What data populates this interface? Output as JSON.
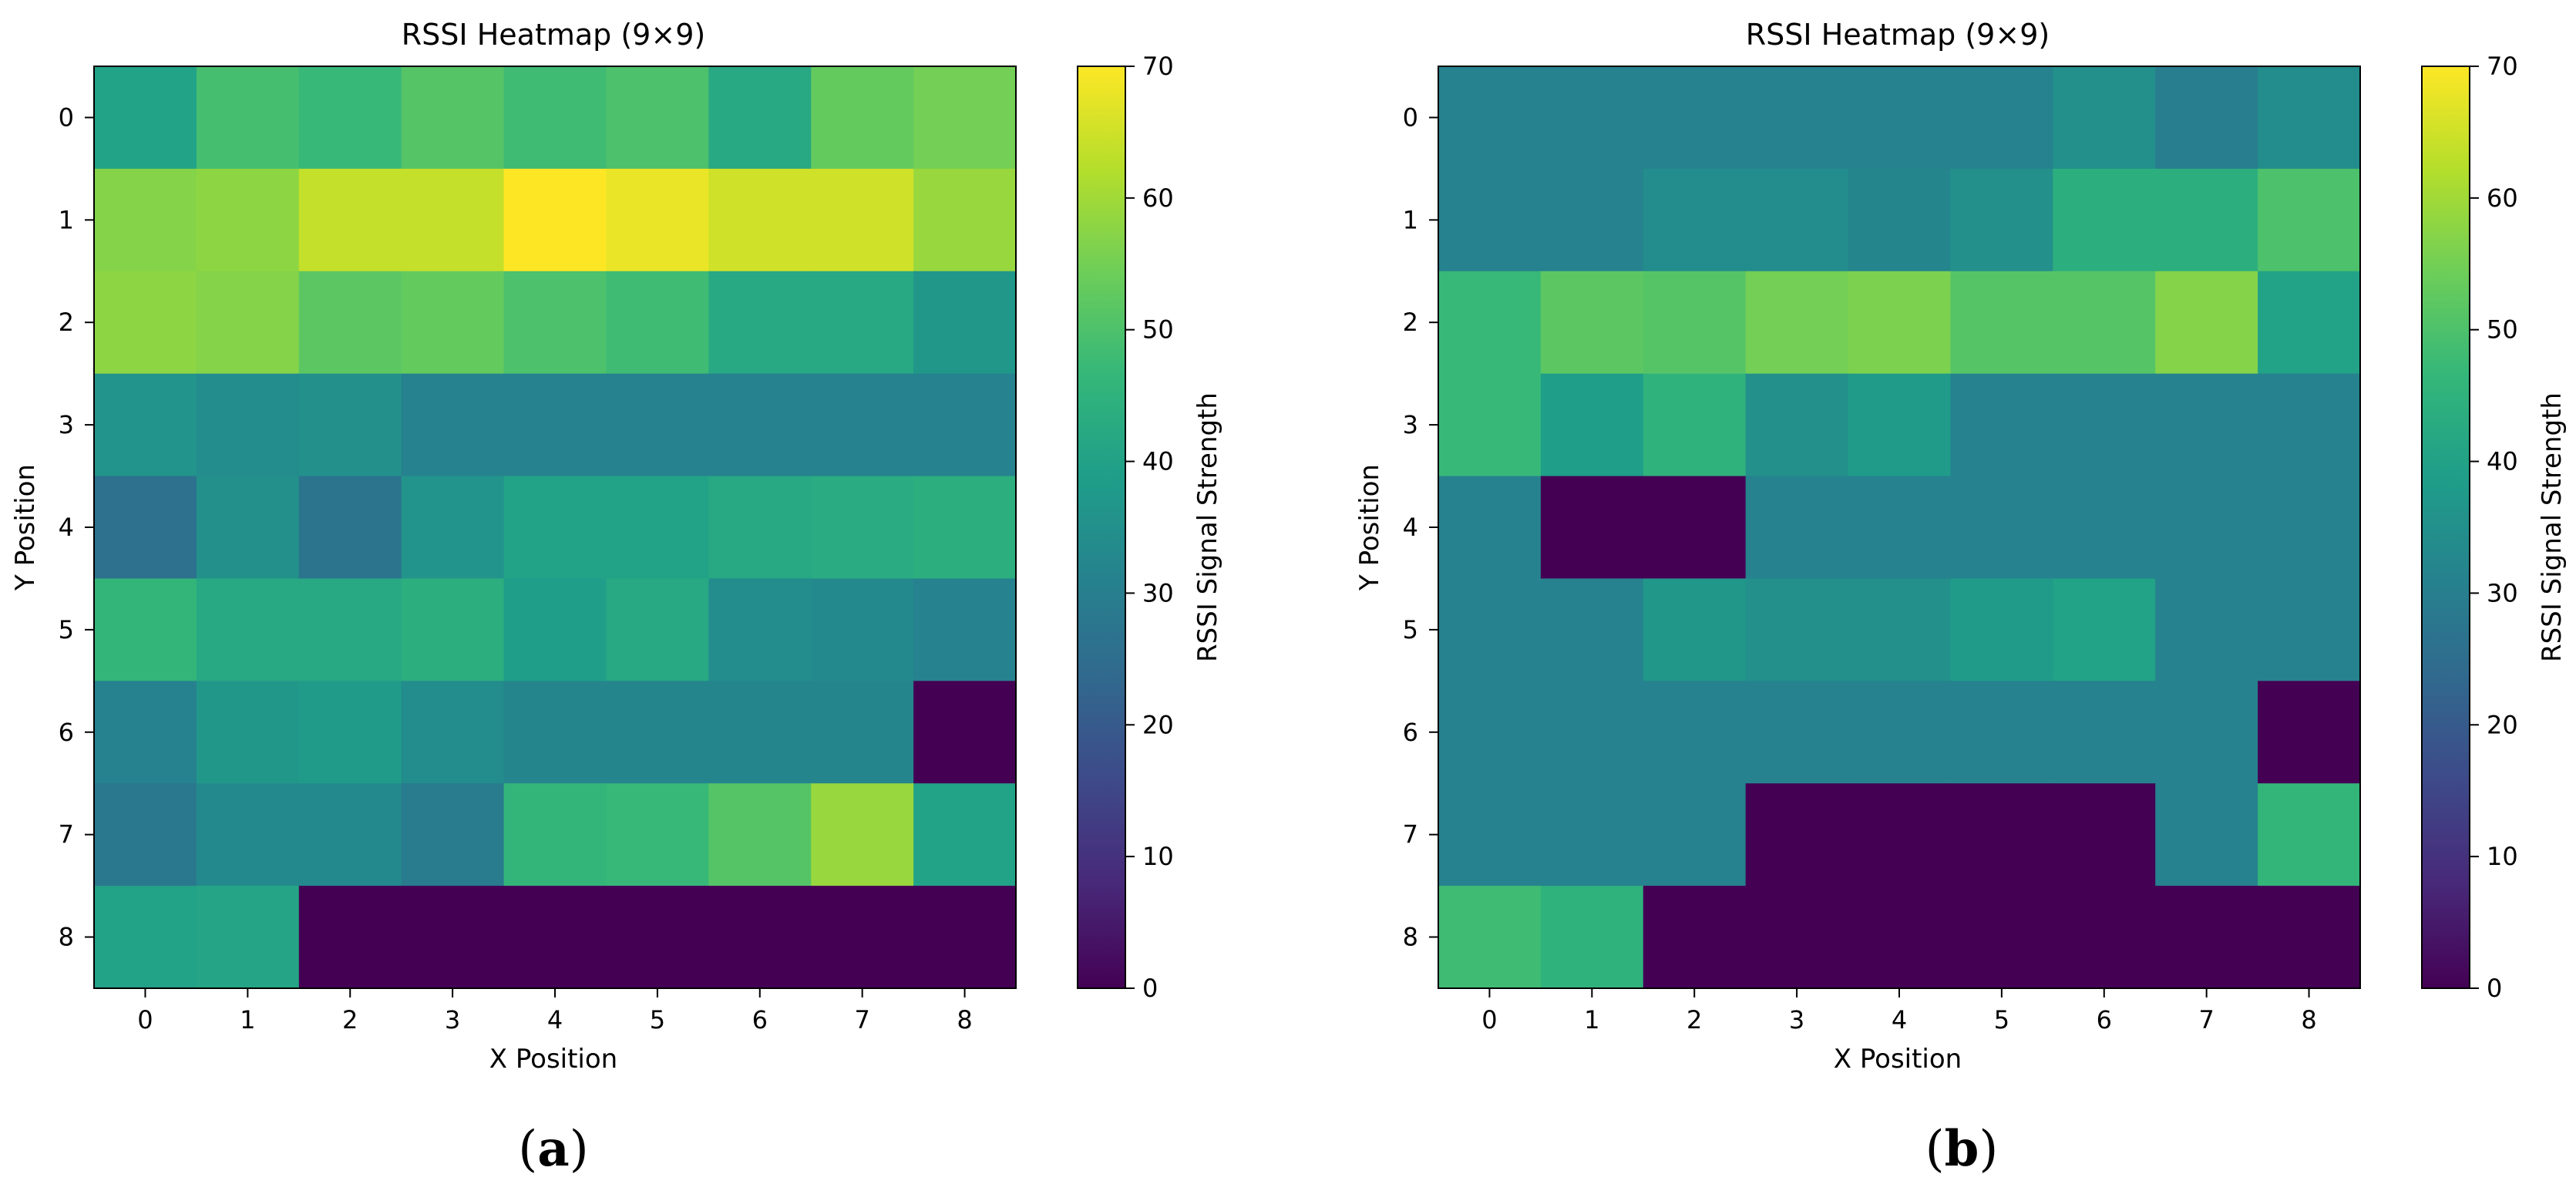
{
  "figure": {
    "panels": [
      "(a)",
      "(b)"
    ]
  },
  "colormap": {
    "name": "viridis",
    "stops": [
      "#440154",
      "#482878",
      "#3e4989",
      "#31688e",
      "#26828e",
      "#1f9e89",
      "#35b779",
      "#6ece58",
      "#b5de2b",
      "#fde725"
    ]
  },
  "chart_data": [
    {
      "type": "heatmap",
      "panel_label": "(a)",
      "panel_letter": "a",
      "title": "RSSI Heatmap (9×9)",
      "xlabel": "X Position",
      "ylabel": "Y Position",
      "x_ticks": [
        "0",
        "1",
        "2",
        "3",
        "4",
        "5",
        "6",
        "7",
        "8"
      ],
      "y_ticks": [
        "0",
        "1",
        "2",
        "3",
        "4",
        "5",
        "6",
        "7",
        "8"
      ],
      "colorbar_label": "RSSI Signal Strength",
      "colorbar_ticks": [
        "0",
        "10",
        "20",
        "30",
        "40",
        "50",
        "60",
        "70"
      ],
      "vmin": 0,
      "vmax": 70,
      "values": [
        [
          40,
          49,
          47,
          51,
          48,
          50,
          42,
          53,
          55
        ],
        [
          57,
          58,
          64,
          64,
          70,
          68,
          65,
          65,
          59
        ],
        [
          58,
          57,
          52,
          53,
          50,
          48,
          42,
          42,
          37
        ],
        [
          36,
          34,
          35,
          31,
          31,
          31,
          31,
          31,
          31
        ],
        [
          26,
          35,
          27,
          36,
          40,
          40,
          42,
          43,
          44
        ],
        [
          46,
          42,
          42,
          44,
          39,
          42,
          34,
          33,
          31
        ],
        [
          31,
          37,
          38,
          34,
          32,
          32,
          32,
          32,
          0
        ],
        [
          28,
          33,
          33,
          29,
          46,
          47,
          51,
          59,
          40
        ],
        [
          40,
          41,
          0,
          0,
          0,
          0,
          0,
          0,
          0
        ]
      ]
    },
    {
      "type": "heatmap",
      "panel_label": "(b)",
      "panel_letter": "b",
      "title": "RSSI Heatmap (9×9)",
      "xlabel": "X Position",
      "ylabel": "Y Position",
      "x_ticks": [
        "0",
        "1",
        "2",
        "3",
        "4",
        "5",
        "6",
        "7",
        "8"
      ],
      "y_ticks": [
        "0",
        "1",
        "2",
        "3",
        "4",
        "5",
        "6",
        "7",
        "8"
      ],
      "colorbar_label": "RSSI Signal Strength",
      "colorbar_ticks": [
        "0",
        "10",
        "20",
        "30",
        "40",
        "50",
        "60",
        "70"
      ],
      "vmin": 0,
      "vmax": 70,
      "values": [
        [
          31,
          31,
          31,
          31,
          31,
          31,
          35,
          30,
          34
        ],
        [
          31,
          31,
          34,
          34,
          32,
          35,
          44,
          44,
          50
        ],
        [
          47,
          52,
          51,
          55,
          56,
          51,
          51,
          57,
          40
        ],
        [
          47,
          39,
          45,
          35,
          38,
          31,
          31,
          31,
          31
        ],
        [
          31,
          0,
          0,
          31,
          31,
          31,
          31,
          31,
          31
        ],
        [
          31,
          31,
          37,
          35,
          35,
          38,
          40,
          31,
          31
        ],
        [
          31,
          31,
          31,
          31,
          31,
          31,
          31,
          31,
          0
        ],
        [
          31,
          31,
          31,
          0,
          0,
          0,
          0,
          31,
          46
        ],
        [
          48,
          45,
          0,
          0,
          0,
          0,
          0,
          0,
          0
        ]
      ]
    }
  ]
}
